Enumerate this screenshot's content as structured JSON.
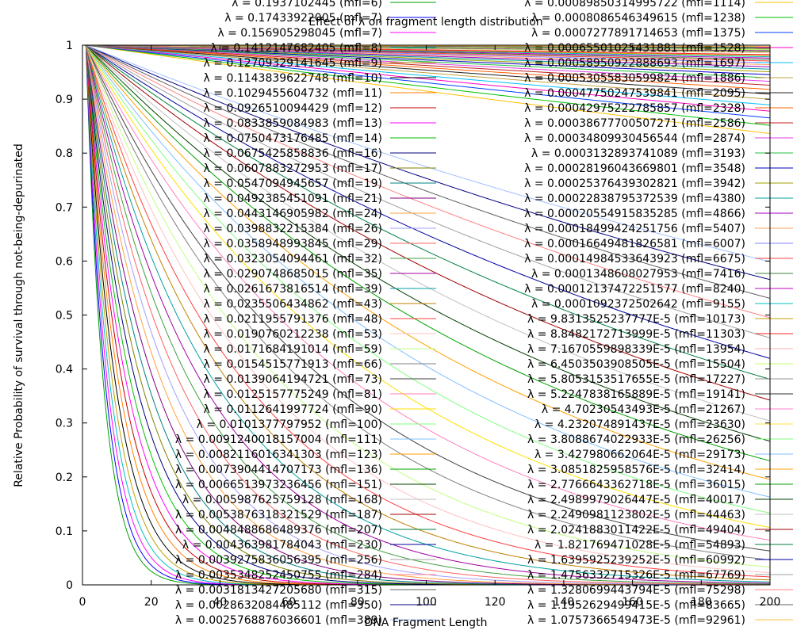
{
  "chart_data": {
    "type": "line",
    "title": "Effect of λ on fragment length distribution",
    "xlabel": "DNA Fragment Length",
    "ylabel": "Relative Probability of survival through not-being-depurinated",
    "xlim": [
      0,
      200
    ],
    "ylim": [
      0,
      1
    ],
    "x_ticks": [
      0,
      20,
      40,
      60,
      80,
      100,
      120,
      140,
      160,
      180,
      200
    ],
    "y_ticks": [
      0,
      0.1,
      0.2,
      0.3,
      0.4,
      0.5,
      0.6,
      0.7,
      0.8,
      0.9,
      1
    ],
    "grid": false,
    "legend_position": "inside, two columns overlaying plot",
    "curve_function": "exp(-λ·(x-1))",
    "series": [
      {
        "name": "λ = 0.1937102445 (mfl=6)",
        "lambda": 0.1937102445,
        "color": "#00a000"
      },
      {
        "name": "λ = 0.17433922005 (mfl=7)",
        "lambda": 0.17433922005,
        "color": "#0000ff"
      },
      {
        "name": "λ = 0.156905298045 (mfl=7)",
        "lambda": 0.156905298045,
        "color": "#ff00ff"
      },
      {
        "name": "λ = 0.1412147682405 (mfl=8)",
        "lambda": 0.1412147682405,
        "color": "#00c0c0"
      },
      {
        "name": "λ = 0.12709329141645 (mfl=9)",
        "lambda": 0.12709329141645,
        "color": "#c0a000"
      },
      {
        "name": "λ = 0.1143839622748 (mfl=10)",
        "lambda": 0.1143839622748,
        "color": "#000000"
      },
      {
        "name": "λ = 0.1029455604732 (mfl=11)",
        "lambda": 0.1029455604732,
        "color": "#ff8000"
      },
      {
        "name": "λ = 0.0926510094429 (mfl=12)",
        "lambda": 0.0926510094429,
        "color": "#c00000"
      },
      {
        "name": "λ = 0.0833859084983 (mfl=13)",
        "lambda": 0.0833859084983,
        "color": "#ff00ff"
      },
      {
        "name": "λ = 0.0750473176485 (mfl=14)",
        "lambda": 0.0750473176485,
        "color": "#00c000"
      },
      {
        "name": "λ = 0.0675425858836 (mfl=16)",
        "lambda": 0.0675425858836,
        "color": "#000080"
      },
      {
        "name": "λ = 0.0607883272953 (mfl=17)",
        "lambda": 0.0607883272953,
        "color": "#808000"
      },
      {
        "name": "λ = 0.0547094945657 (mfl=19)",
        "lambda": 0.0547094945657,
        "color": "#008080"
      },
      {
        "name": "λ = 0.0492385451091 (mfl=21)",
        "lambda": 0.0492385451091,
        "color": "#800080"
      },
      {
        "name": "λ = 0.0443146905982 (mfl=24)",
        "lambda": 0.0443146905982,
        "color": "#ffa040"
      },
      {
        "name": "λ = 0.0398832215384 (mfl=26)",
        "lambda": 0.0398832215384,
        "color": "#a0a0ff"
      },
      {
        "name": "λ = 0.0358948993845 (mfl=29)",
        "lambda": 0.0358948993845,
        "color": "#ff6060"
      },
      {
        "name": "λ = 0.0323054094461 (mfl=32)",
        "lambda": 0.0323054094461,
        "color": "#40a040"
      },
      {
        "name": "λ = 0.0290748685015 (mfl=35)",
        "lambda": 0.0290748685015,
        "color": "#a000a0"
      },
      {
        "name": "λ = 0.0261673816514 (mfl=39)",
        "lambda": 0.0261673816514,
        "color": "#00a0a0"
      },
      {
        "name": "λ = 0.0235506434862 (mfl=43)",
        "lambda": 0.0235506434862,
        "color": "#c08000"
      },
      {
        "name": "λ = 0.0211955791376 (mfl=48)",
        "lambda": 0.0211955791376,
        "color": "#ff4040"
      },
      {
        "name": "λ = 0.0190760212238 (mfl=53)",
        "lambda": 0.0190760212238,
        "color": "#ffc0c0"
      },
      {
        "name": "λ = 0.0171684191014 (mfl=59)",
        "lambda": 0.0171684191014,
        "color": "#c0ff80"
      },
      {
        "name": "λ = 0.0154515771913 (mfl=66)",
        "lambda": 0.0154515771913,
        "color": "#808080"
      },
      {
        "name": "λ = 0.0139064194721 (mfl=73)",
        "lambda": 0.0139064194721,
        "color": "#404040"
      },
      {
        "name": "λ = 0.0125157775249 (mfl=81)",
        "lambda": 0.0125157775249,
        "color": "#ff80c0"
      },
      {
        "name": "λ = 0.0112641997724 (mfl=90)",
        "lambda": 0.0112641997724,
        "color": "#ffe000"
      },
      {
        "name": "λ = 0.0101377797952 (mfl=100)",
        "lambda": 0.0101377797952,
        "color": "#80ff80"
      },
      {
        "name": "λ = 0.0091240018157004 (mfl=111)",
        "lambda": 0.0091240018157004,
        "color": "#80c0ff"
      },
      {
        "name": "λ = 0.0082116016341303 (mfl=123)",
        "lambda": 0.0082116016341303,
        "color": "#ffa000"
      },
      {
        "name": "λ = 0.0073904414707173 (mfl=136)",
        "lambda": 0.0073904414707173,
        "color": "#00a000"
      },
      {
        "name": "λ = 0.0066513973236456 (mfl=151)",
        "lambda": 0.0066513973236456,
        "color": "#004000"
      },
      {
        "name": "λ = 0.005987625759128 (mfl=168)",
        "lambda": 0.005987625759128,
        "color": "#c0c0c0"
      },
      {
        "name": "λ = 0.0053876318321529 (mfl=187)",
        "lambda": 0.0053876318321529,
        "color": "#a00000"
      },
      {
        "name": "λ = 0.0048488686489376 (mfl=207)",
        "lambda": 0.0048488686489376,
        "color": "#008040"
      },
      {
        "name": "λ = 0.004363981784043 (mfl=230)",
        "lambda": 0.004363981784043,
        "color": "#0000a0"
      },
      {
        "name": "λ = 0.0039275836056395 (mfl=256)",
        "lambda": 0.0039275836056395,
        "color": "#a0a0a0"
      },
      {
        "name": "λ = 0.0035348252450755 (mfl=284)",
        "lambda": 0.0035348252450755,
        "color": "#ff8080"
      },
      {
        "name": "λ = 0.0031813427205680 (mfl=315)",
        "lambda": 0.003181342720568,
        "color": "#606060"
      },
      {
        "name": "λ = 0.0028632084485112 (mfl=350)",
        "lambda": 0.0028632084485112,
        "color": "#000080"
      },
      {
        "name": "λ = 0.0025768876036601 (mfl=389)",
        "lambda": 0.0025768876036601,
        "color": "#a0c0ff"
      },
      {
        "name": "λ = 0.00089850314995722 (mfl=1114)",
        "lambda": 0.00089850314995722,
        "color": "#ffc000"
      },
      {
        "name": "λ = 0.0008086546349615 (mfl=1238)",
        "lambda": 0.0008086546349615,
        "color": "#00c000"
      },
      {
        "name": "λ = 0.0007277891714653 (mfl=1375)",
        "lambda": 0.0007277891714653,
        "color": "#0040ff"
      },
      {
        "name": "λ = 0.00065501025431881 (mfl=1528)",
        "lambda": 0.00065501025431881,
        "color": "#ff00c0"
      },
      {
        "name": "λ = 0.00058950922888693 (mfl=1697)",
        "lambda": 0.00058950922888693,
        "color": "#00c0ff"
      },
      {
        "name": "λ = 0.00053055830599824 (mfl=1886)",
        "lambda": 0.00053055830599824,
        "color": "#c0a040"
      },
      {
        "name": "λ = 0.00047750247539841 (mfl=2095)",
        "lambda": 0.00047750247539841,
        "color": "#202020"
      },
      {
        "name": "λ = 0.00042975222785857 (mfl=2328)",
        "lambda": 0.00042975222785857,
        "color": "#ff6000"
      },
      {
        "name": "λ = 0.00038677700507271 (mfl=2586)",
        "lambda": 0.00038677700507271,
        "color": "#c02020"
      },
      {
        "name": "λ = 0.00034809930456544 (mfl=2874)",
        "lambda": 0.00034809930456544,
        "color": "#e040e0"
      },
      {
        "name": "λ = 0.0003132893741089 (mfl=3193)",
        "lambda": 0.0003132893741089,
        "color": "#20c040"
      },
      {
        "name": "λ = 0.00028196043669801 (mfl=3548)",
        "lambda": 0.00028196043669801,
        "color": "#0000c0"
      },
      {
        "name": "λ = 0.00025376439302821 (mfl=3942)",
        "lambda": 0.00025376439302821,
        "color": "#a0a000"
      },
      {
        "name": "λ = 0.00022838795372539 (mfl=4380)",
        "lambda": 0.00022838795372539,
        "color": "#00a0a0"
      },
      {
        "name": "λ = 0.00020554915835285 (mfl=4866)",
        "lambda": 0.00020554915835285,
        "color": "#a000c0"
      },
      {
        "name": "λ = 0.00018499424251756 (mfl=5407)",
        "lambda": 0.00018499424251756,
        "color": "#ffa060"
      },
      {
        "name": "λ = 0.00016649481826581 (mfl=6007)",
        "lambda": 0.00016649481826581,
        "color": "#8080ff"
      },
      {
        "name": "λ = 0.00014984533643923 (mfl=6675)",
        "lambda": 0.00014984533643923,
        "color": "#ff4040"
      },
      {
        "name": "λ = 0.0001348608027953 (mfl=7416)",
        "lambda": 0.0001348608027953,
        "color": "#408040"
      },
      {
        "name": "λ = 0.00012137472251577 (mfl=8240)",
        "lambda": 0.00012137472251577,
        "color": "#c000c0"
      },
      {
        "name": "λ = 0.0001092372502642 (mfl=9155)",
        "lambda": 0.0001092372502642,
        "color": "#00c0c0"
      },
      {
        "name": "λ = 9.8313525237777E-5 (mfl=10173)",
        "lambda": 9.8313525237777e-05,
        "color": "#c0a000"
      },
      {
        "name": "λ = 8.8482172713999E-5 (mfl=11303)",
        "lambda": 8.8482172713999e-05,
        "color": "#ff2020"
      },
      {
        "name": "λ = 7.1670559898339E-5 (mfl=13954)",
        "lambda": 7.1670559898339e-05,
        "color": "#ffb0b0"
      },
      {
        "name": "λ = 6.4503503908505E-5 (mfl=15504)",
        "lambda": 6.4503503908505e-05,
        "color": "#c0ff60"
      },
      {
        "name": "λ = 5.8053153517655E-5 (mfl=17227)",
        "lambda": 5.8053153517655e-05,
        "color": "#909090"
      },
      {
        "name": "λ = 5.2247838165889E-5 (mfl=19141)",
        "lambda": 5.2247838165889e-05,
        "color": "#303030"
      },
      {
        "name": "λ = 4.70230543493E-5 (mfl=21267)",
        "lambda": 4.70230543493e-05,
        "color": "#ff80d0"
      },
      {
        "name": "λ = 4.232074891437E-5 (mfl=23630)",
        "lambda": 4.232074891437e-05,
        "color": "#ffe040"
      },
      {
        "name": "λ = 3.8088674022933E-5 (mfl=26256)",
        "lambda": 3.8088674022933e-05,
        "color": "#80ff80"
      },
      {
        "name": "λ = 3.427980662064E-5 (mfl=29173)",
        "lambda": 3.427980662064e-05,
        "color": "#80c0ff"
      },
      {
        "name": "λ = 3.0851825958576E-5 (mfl=32414)",
        "lambda": 3.0851825958576e-05,
        "color": "#ffa000"
      },
      {
        "name": "λ = 2.7766643362718E-5 (mfl=36015)",
        "lambda": 2.7766643362718e-05,
        "color": "#00a000"
      },
      {
        "name": "λ = 2.4989979026447E-5 (mfl=40017)",
        "lambda": 2.4989979026447e-05,
        "color": "#004000"
      },
      {
        "name": "λ = 2.2490981123802E-5 (mfl=44463)",
        "lambda": 2.2490981123802e-05,
        "color": "#c0c0c0"
      },
      {
        "name": "λ = 2.0241883011422E-5 (mfl=49404)",
        "lambda": 2.0241883011422e-05,
        "color": "#a00000"
      },
      {
        "name": "λ = 1.821769471028E-5 (mfl=54893)",
        "lambda": 1.821769471028e-05,
        "color": "#008040"
      },
      {
        "name": "λ = 1.6395925239252E-5 (mfl=60992)",
        "lambda": 1.6395925239252e-05,
        "color": "#0000a0"
      },
      {
        "name": "λ = 1.4756332715326E-5 (mfl=67769)",
        "lambda": 1.4756332715326e-05,
        "color": "#a0a0a0"
      },
      {
        "name": "λ = 1.3280699443794E-5 (mfl=75298)",
        "lambda": 1.3280699443794e-05,
        "color": "#ff8080"
      },
      {
        "name": "λ = 1.1952629499415E-5 (mfl=83665)",
        "lambda": 1.1952629499415e-05,
        "color": "#606060"
      },
      {
        "name": "λ = 1.0757366549473E-5 (mfl=92961)",
        "lambda": 1.0757366549473e-05,
        "color": "#ffc040"
      }
    ],
    "legend_columns": 2,
    "legend_rows_per_column": 42
  }
}
